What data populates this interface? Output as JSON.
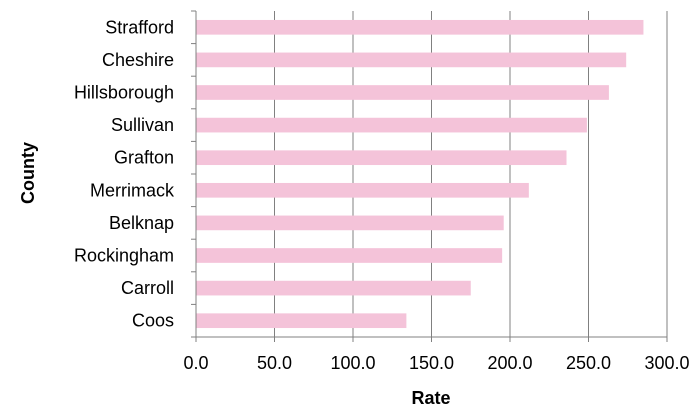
{
  "chart_data": {
    "type": "bar",
    "orientation": "horizontal",
    "title": "",
    "xlabel": "Rate",
    "ylabel": "County",
    "categories": [
      "Strafford",
      "Cheshire",
      "Hillsborough",
      "Sullivan",
      "Grafton",
      "Merrimack",
      "Belknap",
      "Rockingham",
      "Carroll",
      "Coos"
    ],
    "values": [
      285,
      274,
      263,
      249,
      236,
      212,
      196,
      195,
      175,
      134
    ],
    "xlim": [
      0,
      300
    ],
    "xticks": [
      "0.0",
      "50.0",
      "100.0",
      "150.0",
      "200.0",
      "250.0",
      "300.0"
    ],
    "xtick_values": [
      0,
      50,
      100,
      150,
      200,
      250,
      300
    ],
    "grid": "vertical",
    "legend": "none",
    "colors": {
      "bar": "#f4c3d9",
      "grid": "#808080",
      "axis": "#808080"
    }
  }
}
